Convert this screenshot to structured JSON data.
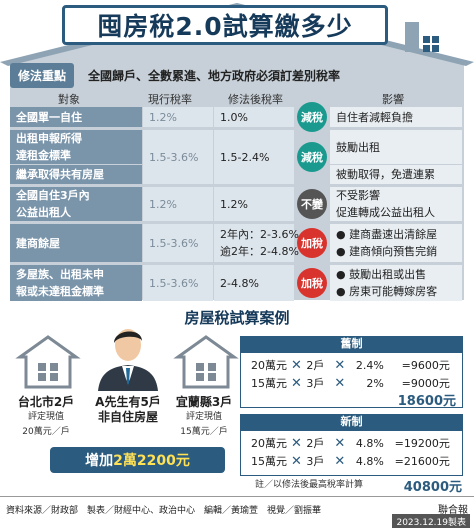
{
  "title": "囤房稅2.0試算繳多少",
  "reform": {
    "badge": "修法重點",
    "text": "全國歸戶、全數累進、地方政府必須訂差別稅率"
  },
  "headers": {
    "object": "對象",
    "current": "現行稅率",
    "new": "修法後稅率",
    "impact": "影響"
  },
  "rows": [
    {
      "object": [
        "全國單一自住"
      ],
      "current": "1.2%",
      "new": [
        "1.0%"
      ],
      "effect": "減稅",
      "impact": [
        "自住者減輕負擔"
      ]
    },
    {
      "object": [
        "出租申報所得",
        "達租金標準"
      ],
      "current": "1.5-3.6%",
      "new": [
        "1.5-2.4%"
      ],
      "effect": "減稅",
      "impact": [
        "鼓勵出租"
      ]
    },
    {
      "object": [
        "繼承取得共有房屋"
      ],
      "current": "",
      "new": [
        ""
      ],
      "effect": "",
      "impact": [
        "被動取得，免遭連累"
      ]
    },
    {
      "object": [
        "全國自住3戶內",
        "公益出租人"
      ],
      "current": "1.2%",
      "new": [
        "1.2%"
      ],
      "effect": "不變",
      "impact": [
        "不受影響",
        "促進轉成公益出租人"
      ]
    },
    {
      "object": [
        "建商餘屋"
      ],
      "current": "1.5-3.6%",
      "new": [
        "2年內：2-3.6%",
        "逾2年：2-4.8%"
      ],
      "effect": "加稅",
      "impact": [
        "● 建商盡速出清餘屋",
        "● 建商傾向預售完銷"
      ]
    },
    {
      "object": [
        "多屋族、出租未申",
        "報或未達租金標準"
      ],
      "current": "1.5-3.6%",
      "new": [
        "2-4.8%"
      ],
      "effect": "加稅",
      "impact": [
        "● 鼓勵出租或出售",
        "● 房東可能轉嫁房客"
      ]
    }
  ],
  "case": {
    "title": "房屋稅試算案例",
    "left": {
      "name": "台北市2戶",
      "label": "評定現值",
      "value": "20萬元／戶"
    },
    "center": {
      "name": "A先生有5戶",
      "sub": "非自住房屋"
    },
    "right": {
      "name": "宜蘭縣3戶",
      "label": "評定現值",
      "value": "15萬元／戶"
    },
    "increase_prefix": "增加",
    "increase_value": "2萬2200元"
  },
  "old": {
    "title": "舊制",
    "lines": [
      {
        "a": "20萬元",
        "b": "2戶",
        "c": "2.4%",
        "r": "=9600元"
      },
      {
        "a": "15萬元",
        "b": "3戶",
        "c": "2%",
        "r": "=9000元"
      }
    ],
    "total": "18600元"
  },
  "new": {
    "title": "新制",
    "lines": [
      {
        "a": "20萬元",
        "b": "2戶",
        "c": "4.8%",
        "r": "=19200元"
      },
      {
        "a": "15萬元",
        "b": "3戶",
        "c": "4.8%",
        "r": "=21600元"
      }
    ],
    "total": "40800元"
  },
  "note": "註／以修法後最高稅率計算",
  "footer": {
    "credit": "資料來源／財政部　製表／財經中心、政治中心　編輯／黃瑜萱　視覺／劉振華",
    "brand": "聯合報",
    "date": "2023.12.19製表"
  },
  "colors": {
    "primary": "#2b5b7e",
    "decrease": "#1a9a8f",
    "same": "#555555",
    "increase": "#d8332d",
    "label": "#7a94aa"
  }
}
